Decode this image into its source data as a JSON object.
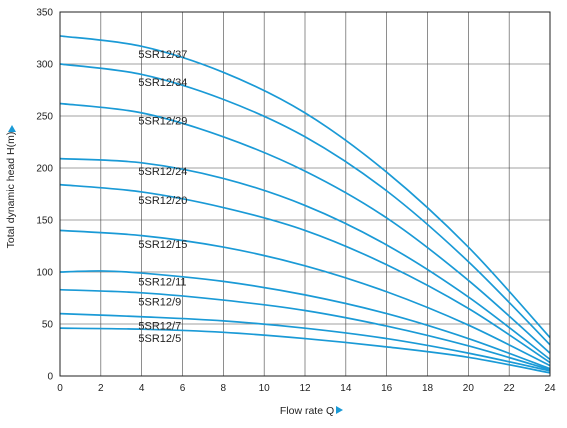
{
  "chart_data": {
    "type": "line",
    "title": "",
    "xlabel": "Flow rate  Q",
    "ylabel": "Total dynamic head H(m)",
    "xlim": [
      0,
      24
    ],
    "ylim": [
      0,
      350
    ],
    "xticks": [
      "0",
      "2",
      "4",
      "6",
      "8",
      "10",
      "12",
      "14",
      "16",
      "18",
      "20",
      "22",
      "24"
    ],
    "yticks": [
      "0",
      "50",
      "100",
      "150",
      "200",
      "250",
      "300",
      "350"
    ],
    "grid": true,
    "line_color": "#1a9ad6",
    "series": [
      {
        "name": "5SR12/37",
        "x": [
          0,
          4,
          8,
          12,
          16,
          20,
          24
        ],
        "y": [
          327,
          317,
          292,
          253,
          196,
          124,
          37
        ]
      },
      {
        "name": "5SR12/34",
        "x": [
          0,
          4,
          8,
          12,
          16,
          20,
          24
        ],
        "y": [
          300,
          290,
          266,
          230,
          178,
          110,
          30
        ]
      },
      {
        "name": "5SR12/29",
        "x": [
          0,
          4,
          8,
          12,
          16,
          20,
          24
        ],
        "y": [
          262,
          253,
          230,
          197,
          152,
          92,
          22
        ]
      },
      {
        "name": "5SR12/24",
        "x": [
          0,
          4,
          8,
          12,
          16,
          20,
          24
        ],
        "y": [
          209,
          205,
          190,
          164,
          126,
          76,
          16
        ]
      },
      {
        "name": "5SR12/20",
        "x": [
          0,
          4,
          8,
          12,
          16,
          20,
          24
        ],
        "y": [
          184,
          177,
          162,
          140,
          107,
          65,
          13
        ]
      },
      {
        "name": "5SR12/15",
        "x": [
          0,
          4,
          8,
          12,
          16,
          20,
          24
        ],
        "y": [
          140,
          135,
          124,
          106,
          81,
          49,
          10
        ]
      },
      {
        "name": "5SR12/11",
        "x": [
          0,
          2,
          4,
          8,
          12,
          16,
          20,
          24
        ],
        "y": [
          100,
          101,
          99,
          91,
          78,
          60,
          36,
          7
        ]
      },
      {
        "name": "5SR12/9",
        "x": [
          0,
          4,
          8,
          12,
          16,
          20,
          24
        ],
        "y": [
          83,
          80,
          73,
          63,
          48,
          29,
          6
        ]
      },
      {
        "name": "5SR12/7",
        "x": [
          0,
          4,
          8,
          12,
          16,
          20,
          24
        ],
        "y": [
          60,
          57,
          53,
          46,
          36,
          22,
          5
        ]
      },
      {
        "name": "5SR12/5",
        "x": [
          0,
          4,
          8,
          12,
          16,
          20,
          24
        ],
        "y": [
          46,
          45,
          42,
          36,
          28,
          18,
          3
        ]
      }
    ],
    "label_positions_x": 3.4
  }
}
